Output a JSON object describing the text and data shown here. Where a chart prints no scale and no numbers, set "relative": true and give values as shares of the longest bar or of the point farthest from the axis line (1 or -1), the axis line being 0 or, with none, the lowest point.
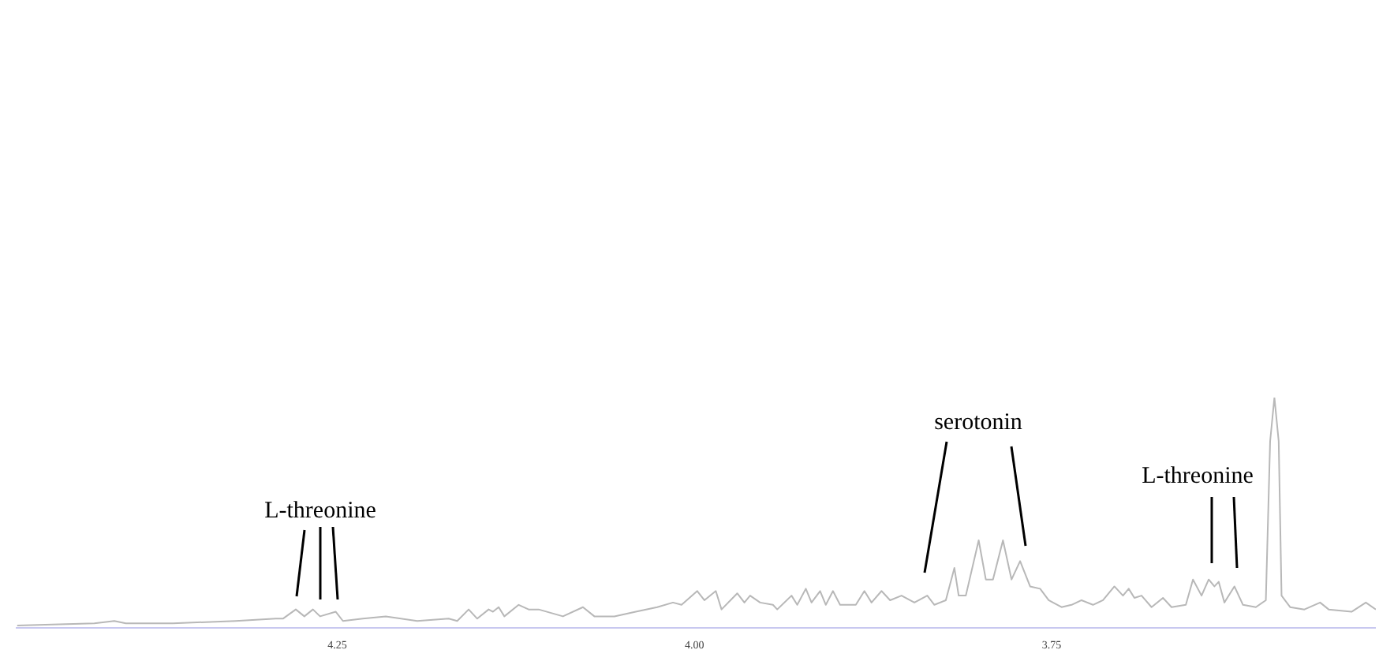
{
  "chart_data": {
    "type": "line",
    "relative": true,
    "xlim": [
      4.475,
      3.523
    ],
    "xticks": [
      4.25,
      {
        "value": 4,
        "label": "4.00"
      },
      3.75
    ],
    "x": [
      4.474,
      4.42,
      4.406,
      4.398,
      4.365,
      4.321,
      4.293,
      4.288,
      4.279,
      4.273,
      4.267,
      4.262,
      4.251,
      4.246,
      4.232,
      4.216,
      4.194,
      4.172,
      4.166,
      4.158,
      4.152,
      4.144,
      4.141,
      4.137,
      4.133,
      4.123,
      4.116,
      4.109,
      4.092,
      4.078,
      4.07,
      4.056,
      4.041,
      4.026,
      4.015,
      4.009,
      3.998,
      3.993,
      3.985,
      3.981,
      3.97,
      3.965,
      3.961,
      3.954,
      3.945,
      3.942,
      3.932,
      3.928,
      3.922,
      3.918,
      3.912,
      3.908,
      3.903,
      3.898,
      3.887,
      3.881,
      3.876,
      3.869,
      3.863,
      3.855,
      3.846,
      3.837,
      3.832,
      3.824,
      3.818,
      3.815,
      3.81,
      3.801,
      3.796,
      3.791,
      3.784,
      3.778,
      3.772,
      3.765,
      3.758,
      3.752,
      3.743,
      3.736,
      3.729,
      3.721,
      3.714,
      3.706,
      3.7,
      3.696,
      3.692,
      3.687,
      3.68,
      3.672,
      3.666,
      3.656,
      3.651,
      3.645,
      3.64,
      3.636,
      3.633,
      3.629,
      3.622,
      3.616,
      3.607,
      3.6,
      3.597,
      3.594,
      3.591,
      3.589,
      3.583,
      3.573,
      3.562,
      3.556,
      3.54,
      3.53,
      3.523
    ],
    "series": [
      {
        "color": "#b8b8b8",
        "values": [
          0.01,
          0.02,
          0.03,
          0.02,
          0.02,
          0.03,
          0.04,
          0.04,
          0.08,
          0.05,
          0.08,
          0.05,
          0.07,
          0.03,
          0.04,
          0.05,
          0.03,
          0.04,
          0.03,
          0.08,
          0.04,
          0.08,
          0.07,
          0.09,
          0.05,
          0.1,
          0.08,
          0.08,
          0.05,
          0.09,
          0.05,
          0.05,
          0.07,
          0.09,
          0.11,
          0.1,
          0.16,
          0.12,
          0.16,
          0.08,
          0.15,
          0.11,
          0.14,
          0.11,
          0.1,
          0.08,
          0.14,
          0.1,
          0.17,
          0.11,
          0.16,
          0.1,
          0.16,
          0.1,
          0.1,
          0.16,
          0.11,
          0.16,
          0.12,
          0.14,
          0.11,
          0.14,
          0.1,
          0.12,
          0.26,
          0.14,
          0.14,
          0.38,
          0.21,
          0.21,
          0.38,
          0.21,
          0.29,
          0.18,
          0.17,
          0.12,
          0.09,
          0.1,
          0.12,
          0.1,
          0.12,
          0.18,
          0.14,
          0.17,
          0.13,
          0.14,
          0.09,
          0.13,
          0.09,
          0.1,
          0.21,
          0.14,
          0.21,
          0.18,
          0.2,
          0.11,
          0.18,
          0.1,
          0.09,
          0.12,
          0.81,
          1,
          0.81,
          0.14,
          0.09,
          0.08,
          0.11,
          0.08,
          0.07,
          0.11,
          0.08
        ]
      }
    ],
    "annotations": [
      "L-threonine",
      "serotonin",
      "L-threonine"
    ]
  }
}
